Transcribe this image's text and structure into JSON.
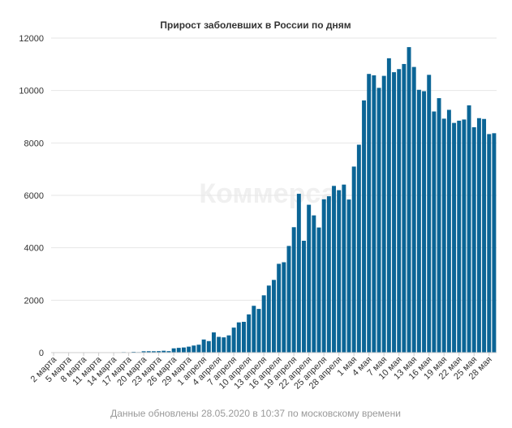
{
  "watermark": "Коммерса",
  "caption": "Данные обновлены 28.05.2020 в 10:37 по московскому времени",
  "colors": {
    "bar": "#0b6596",
    "grid": "#e6e6e6",
    "text": "#333333",
    "caption": "#999999"
  },
  "chart_data": {
    "type": "bar",
    "title": "Прирост заболевших в России по дням",
    "xlabel": "",
    "ylabel": "",
    "ylim": [
      0,
      12000
    ],
    "yticks": [
      0,
      2000,
      4000,
      6000,
      8000,
      10000,
      12000
    ],
    "grid": true,
    "legend": "none",
    "x_tick_labels": [
      "2 марта",
      "5 марта",
      "8 марта",
      "11 марта",
      "14 марта",
      "17 марта",
      "20 марта",
      "23 марта",
      "26 марта",
      "29 марта",
      "1 апреля",
      "4 апреля",
      "7 апреля",
      "10 апреля",
      "13 апреля",
      "16 апреля",
      "19 апреля",
      "22 апреля",
      "25 апреля",
      "28 апреля",
      "1 мая",
      "4 мая",
      "7 мая",
      "10 мая",
      "13 мая",
      "16 мая",
      "19 мая",
      "22 мая",
      "25 мая",
      "28 мая"
    ],
    "values": [
      1,
      0,
      0,
      1,
      0,
      0,
      0,
      3,
      4,
      3,
      6,
      0,
      8,
      10,
      20,
      0,
      30,
      20,
      52,
      54,
      53,
      57,
      71,
      57,
      163,
      182,
      196,
      228,
      270,
      302,
      500,
      440,
      771,
      601,
      582,
      658,
      954,
      1154,
      1175,
      1459,
      1786,
      1667,
      2186,
      2558,
      2774,
      3388,
      3448,
      4070,
      4785,
      6060,
      4268,
      5642,
      5236,
      4774,
      5849,
      5966,
      6361,
      6198,
      6411,
      5841,
      7099,
      7933,
      9623,
      10633,
      10581,
      10102,
      10559,
      11231,
      10699,
      10817,
      11012,
      11656,
      10899,
      10028,
      9974,
      10598,
      9200,
      9709,
      8926,
      9263,
      8764,
      8849,
      8894,
      9434,
      8599,
      8946,
      8915,
      8338,
      8371
    ]
  }
}
